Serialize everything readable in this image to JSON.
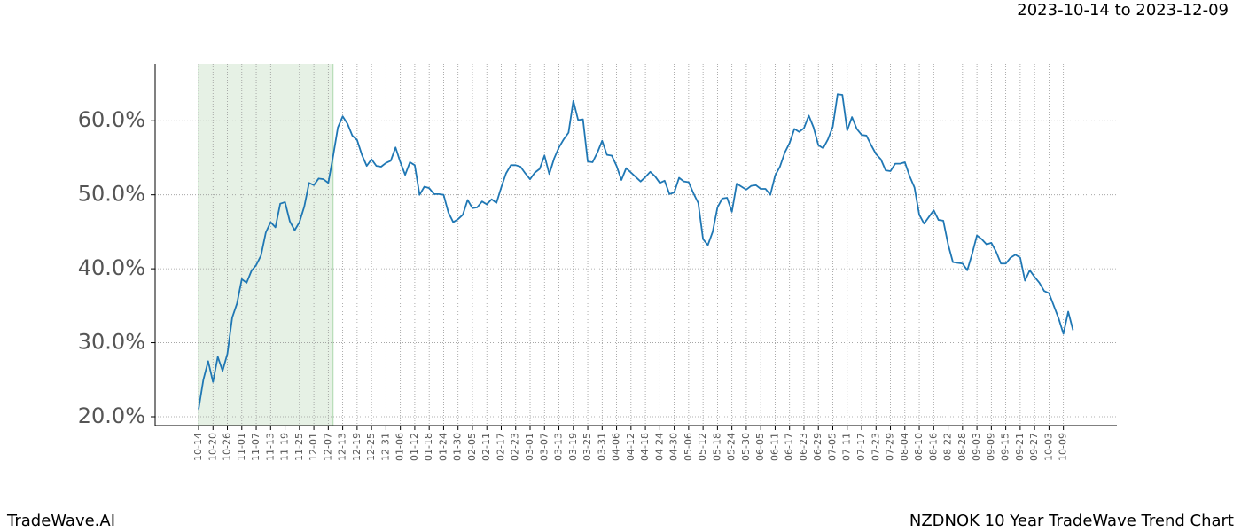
{
  "chart_data": {
    "type": "line",
    "title": "NZDNOK 10 Year TradeWave Trend Chart",
    "subtitle": "2023-10-14 to 2023-12-09",
    "brand": "TradeWave.AI",
    "color": "#1f77b4",
    "highlight": {
      "start": 0,
      "end": 28,
      "color": "#d9ead7"
    },
    "grid": true,
    "ylim": [
      18.8,
      67.7
    ],
    "yticks": [
      {
        "value": 20,
        "label": "20.0%"
      },
      {
        "value": 30,
        "label": "30.0%"
      },
      {
        "value": 40,
        "label": "40.0%"
      },
      {
        "value": 50,
        "label": "50.0%"
      },
      {
        "value": 60,
        "label": "60.0%"
      }
    ],
    "categories": [
      "10-14",
      null,
      null,
      "10-20",
      null,
      null,
      "10-26",
      null,
      null,
      "11-01",
      null,
      null,
      "11-07",
      null,
      null,
      "11-13",
      null,
      null,
      "11-19",
      null,
      null,
      "11-25",
      null,
      null,
      "12-01",
      null,
      null,
      "12-07",
      null,
      null,
      "12-13",
      null,
      null,
      "12-19",
      null,
      null,
      "12-25",
      null,
      null,
      "12-31",
      null,
      null,
      "01-06",
      null,
      null,
      "01-12",
      null,
      null,
      "01-18",
      null,
      null,
      "01-24",
      null,
      null,
      "01-30",
      null,
      null,
      "02-05",
      null,
      null,
      "02-11",
      null,
      null,
      "02-17",
      null,
      null,
      "02-23",
      null,
      null,
      "03-01",
      null,
      null,
      "03-07",
      null,
      null,
      "03-13",
      null,
      null,
      "03-19",
      null,
      null,
      "03-25",
      null,
      null,
      "03-31",
      null,
      null,
      "04-06",
      null,
      null,
      "04-12",
      null,
      null,
      "04-18",
      null,
      null,
      "04-24",
      null,
      null,
      "04-30",
      null,
      null,
      "05-06",
      null,
      null,
      "05-12",
      null,
      null,
      "05-18",
      null,
      null,
      "05-24",
      null,
      null,
      "05-30",
      null,
      null,
      "06-05",
      null,
      null,
      "06-11",
      null,
      null,
      "06-17",
      null,
      null,
      "06-23",
      null,
      null,
      "06-29",
      null,
      null,
      "07-05",
      null,
      null,
      "07-11",
      null,
      null,
      "07-17",
      null,
      null,
      "07-23",
      null,
      null,
      "07-29",
      null,
      null,
      "08-04",
      null,
      null,
      "08-10",
      null,
      null,
      "08-16",
      null,
      null,
      "08-22",
      null,
      null,
      "08-28",
      null,
      null,
      "09-03",
      null,
      null,
      "09-09",
      null,
      null,
      "09-15",
      null,
      null,
      "09-21",
      null,
      null,
      "09-27",
      null,
      null,
      "10-03",
      null,
      null,
      "10-09",
      null,
      null
    ],
    "values": [
      21,
      25,
      27.5,
      24.7,
      28.1,
      26.2,
      28.5,
      33.4,
      35.3,
      38.6,
      38.1,
      39.7,
      40.5,
      41.8,
      44.9,
      46.3,
      45.6,
      48.8,
      49,
      46.4,
      45.2,
      46.3,
      48.4,
      51.6,
      51.3,
      52.2,
      52.1,
      51.6,
      55.2,
      59.1,
      60.6,
      59.6,
      58,
      57.4,
      55.4,
      53.9,
      54.8,
      53.9,
      53.8,
      54.3,
      54.6,
      56.4,
      54.4,
      52.7,
      54.4,
      54,
      50,
      51.1,
      50.9,
      50.1,
      50.1,
      50,
      47.6,
      46.3,
      46.7,
      47.3,
      49.3,
      48.2,
      48.3,
      49.1,
      48.7,
      49.4,
      48.9,
      51,
      52.9,
      54,
      54,
      53.8,
      52.9,
      52.1,
      53,
      53.5,
      55.3,
      52.8,
      54.9,
      56.4,
      57.5,
      58.4,
      62.7,
      60.1,
      60.2,
      54.5,
      54.4,
      55.7,
      57.3,
      55.4,
      55.3,
      53.9,
      52,
      53.6,
      53,
      52.4,
      51.8,
      52.4,
      53.1,
      52.5,
      51.6,
      51.9,
      50.1,
      50.3,
      52.3,
      51.8,
      51.7,
      50.2,
      48.9,
      44,
      43.2,
      45,
      48.3,
      49.5,
      49.6,
      47.7,
      51.5,
      51.1,
      50.7,
      51.2,
      51.3,
      50.8,
      50.8,
      50,
      52.6,
      53.8,
      55.7,
      57,
      58.9,
      58.5,
      59,
      60.7,
      59.1,
      56.7,
      56.3,
      57.5,
      59.2,
      63.6,
      63.5,
      58.7,
      60.5,
      58.9,
      58.1,
      58,
      56.7,
      55.5,
      54.8,
      53.3,
      53.2,
      54.2,
      54.2,
      54.4,
      52.5,
      51,
      47.3,
      46.1,
      47,
      47.9,
      46.6,
      46.5,
      43.3,
      40.9,
      40.8,
      40.7,
      39.8,
      42,
      44.5,
      44,
      43.3,
      43.5,
      42.3,
      40.7,
      40.7,
      41.5,
      41.9,
      41.5,
      38.4,
      39.8,
      38.9,
      38.1,
      37,
      36.7,
      35,
      33.3,
      31.2,
      34.2,
      31.7
    ]
  }
}
